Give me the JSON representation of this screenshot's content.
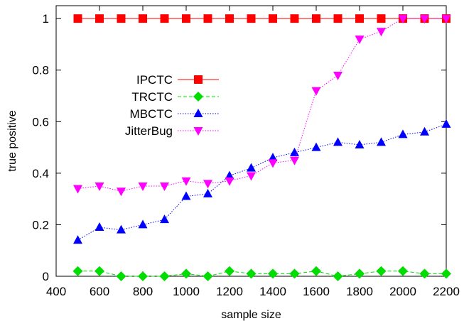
{
  "chart_data": {
    "type": "line",
    "title": "",
    "xlabel": "sample size",
    "ylabel": "true positive",
    "xlim": [
      400,
      2200
    ],
    "ylim": [
      0,
      1.05
    ],
    "xticks": [
      400,
      600,
      800,
      1000,
      1200,
      1400,
      1600,
      1800,
      2000,
      2200
    ],
    "yticks": [
      0,
      0.2,
      0.4,
      0.6,
      0.8,
      1
    ],
    "ytick_labels": [
      "0",
      "0.2",
      "0.4",
      "0.6",
      "0.8",
      "1"
    ],
    "grid": false,
    "legend_position": "left-center",
    "x": [
      500,
      600,
      700,
      800,
      900,
      1000,
      1100,
      1200,
      1300,
      1400,
      1500,
      1600,
      1700,
      1800,
      1900,
      2000,
      2100,
      2200
    ],
    "series": [
      {
        "name": "IPCTC",
        "color": "#ff0000",
        "marker": "square",
        "line_style": "solid",
        "values": [
          1,
          1,
          1,
          1,
          1,
          1,
          1,
          1,
          1,
          1,
          1,
          1,
          1,
          1,
          1,
          1,
          1,
          1
        ]
      },
      {
        "name": "TRCTC",
        "color": "#00dd00",
        "marker": "diamond",
        "line_style": "dashed",
        "values": [
          0.02,
          0.02,
          0.0,
          0.0,
          0.0,
          0.01,
          0.0,
          0.02,
          0.01,
          0.01,
          0.01,
          0.02,
          0.0,
          0.01,
          0.02,
          0.02,
          0.01,
          0.01
        ]
      },
      {
        "name": "MBCTC",
        "color": "#0000ff",
        "marker": "triangle-up",
        "line_style": "dotted",
        "values": [
          0.14,
          0.19,
          0.18,
          0.2,
          0.22,
          0.31,
          0.32,
          0.39,
          0.42,
          0.46,
          0.48,
          0.5,
          0.52,
          0.51,
          0.52,
          0.55,
          0.56,
          0.59
        ]
      },
      {
        "name": "JitterBug",
        "color": "#ff00ff",
        "marker": "triangle-down",
        "line_style": "dotted",
        "values": [
          0.34,
          0.35,
          0.33,
          0.35,
          0.35,
          0.37,
          0.36,
          0.37,
          0.39,
          0.44,
          0.45,
          0.72,
          0.78,
          0.92,
          0.95,
          1.0,
          1.0,
          1.0
        ]
      }
    ]
  }
}
